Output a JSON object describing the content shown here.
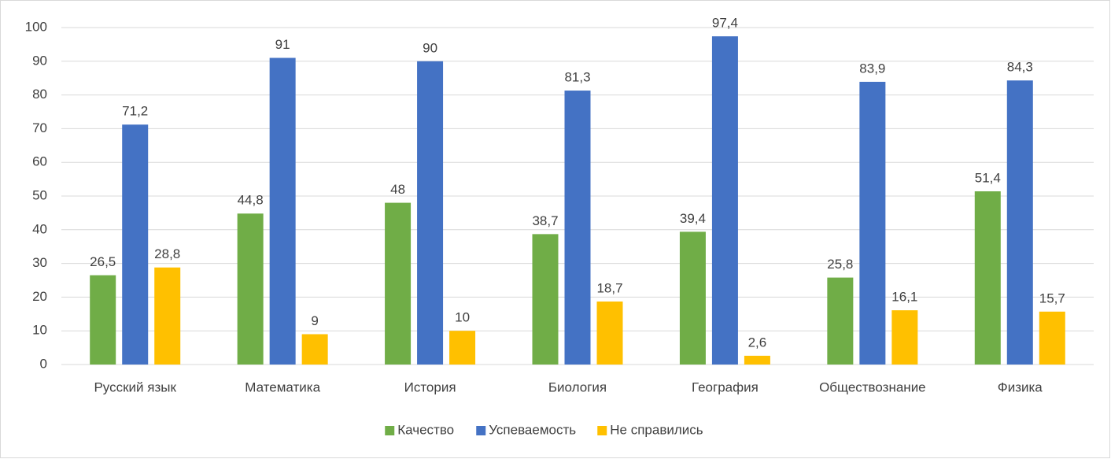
{
  "chart_data": {
    "type": "bar",
    "categories": [
      "Русский язык",
      "Математика",
      "История",
      "Биология",
      "География",
      "Обществознание",
      "Физика"
    ],
    "series": [
      {
        "name": "Качество",
        "color": "#70ad47",
        "values": [
          26.5,
          44.8,
          48,
          38.7,
          39.4,
          25.8,
          51.4
        ],
        "value_labels": [
          "26,5",
          "44,8",
          "48",
          "38,7",
          "39,4",
          "25,8",
          "51,4"
        ]
      },
      {
        "name": "Успеваемость",
        "color": "#4472c4",
        "values": [
          71.2,
          91,
          90,
          81.3,
          97.4,
          83.9,
          84.3
        ],
        "value_labels": [
          "71,2",
          "91",
          "90",
          "81,3",
          "97,4",
          "83,9",
          "84,3"
        ]
      },
      {
        "name": "Не справились",
        "color": "#ffc000",
        "values": [
          28.8,
          9,
          10,
          18.7,
          2.6,
          16.1,
          15.7
        ],
        "value_labels": [
          "28,8",
          "9",
          "10",
          "18,7",
          "2,6",
          "16,1",
          "15,7"
        ]
      }
    ],
    "ylim": [
      0,
      100
    ],
    "yticks": [
      0,
      10,
      20,
      30,
      40,
      50,
      60,
      70,
      80,
      90,
      100
    ],
    "grid": true,
    "legend": "bottom"
  }
}
